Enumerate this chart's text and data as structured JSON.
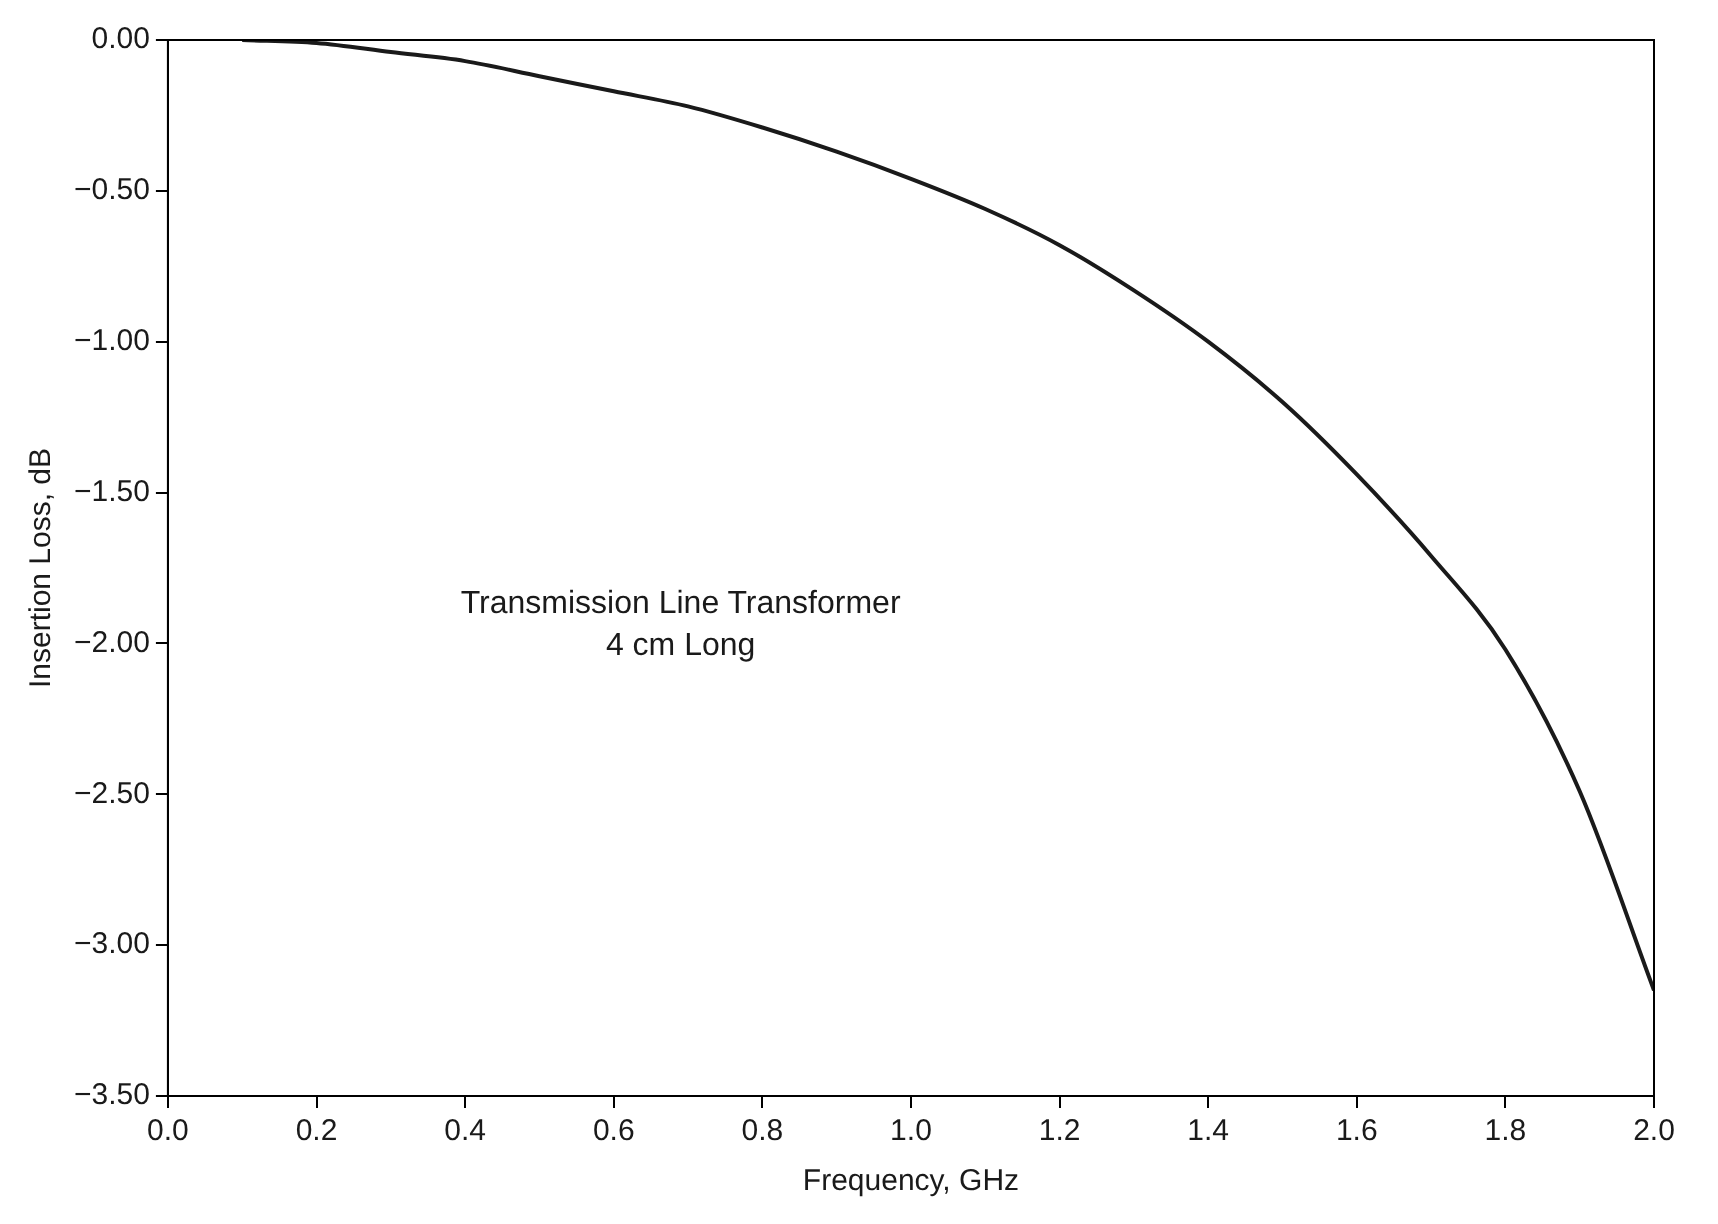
{
  "chart_data": {
    "type": "line",
    "xlabel": "Frequency, GHz",
    "ylabel": "Insertion Loss, dB",
    "x": [
      0.1,
      0.2,
      0.3,
      0.4,
      0.5,
      0.6,
      0.7,
      0.8,
      0.9,
      1.0,
      1.1,
      1.2,
      1.3,
      1.4,
      1.5,
      1.6,
      1.7,
      1.8,
      1.9,
      2.0
    ],
    "series": [
      {
        "color": "#1a1a1a",
        "values": [
          0,
          -0.01,
          -0.04,
          -0.07,
          -0.12,
          -0.17,
          -0.22,
          -0.29,
          -0.37,
          -0.46,
          -0.56,
          -0.68,
          -0.83,
          -1.0,
          -1.2,
          -1.44,
          -1.71,
          -2.02,
          -2.49,
          -3.15
        ]
      }
    ],
    "xlim": [
      0,
      2
    ],
    "xticks": [
      {
        "value": 0,
        "label": "0.0"
      },
      {
        "value": 0.2,
        "label": "0.2"
      },
      {
        "value": 0.4,
        "label": "0.4"
      },
      {
        "value": 0.6,
        "label": "0.6"
      },
      {
        "value": 0.8,
        "label": "0.8"
      },
      {
        "value": 1,
        "label": "1.0"
      },
      {
        "value": 1.2,
        "label": "1.2"
      },
      {
        "value": 1.4,
        "label": "1.4"
      },
      {
        "value": 1.6,
        "label": "1.6"
      },
      {
        "value": 1.8,
        "label": "1.8"
      },
      {
        "value": 2,
        "label": "2.0"
      }
    ],
    "ylim": [
      -3.5,
      0
    ],
    "yticks": [
      {
        "value": 0,
        "label": "0.00"
      },
      {
        "value": -0.5,
        "label": "−0.50"
      },
      {
        "value": -1,
        "label": "−1.00"
      },
      {
        "value": -1.5,
        "label": "−1.50"
      },
      {
        "value": -2,
        "label": "−2.00"
      },
      {
        "value": -2.5,
        "label": "−2.50"
      },
      {
        "value": -3,
        "label": "−3.00"
      },
      {
        "value": -3.5,
        "label": "−3.50"
      }
    ],
    "annotations": [
      "Transmission Line Transformer",
      "4 cm Long"
    ],
    "grid": false,
    "legend": false,
    "marker": "none",
    "line_style": "solid"
  }
}
